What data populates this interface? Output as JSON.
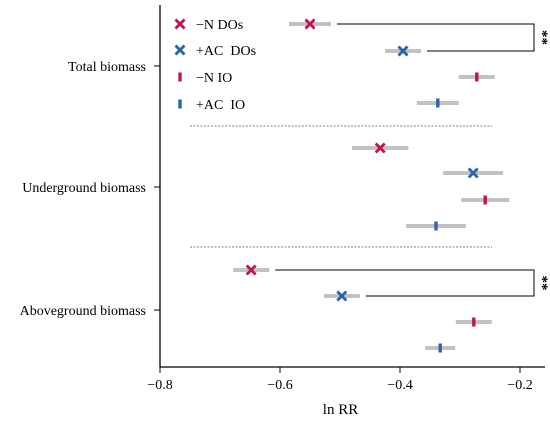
{
  "chart_data": {
    "type": "forest",
    "xlabel": "ln RR",
    "xlim": [
      -0.8,
      -0.2
    ],
    "xticks": [
      -0.8,
      -0.6,
      -0.4,
      -0.2
    ],
    "xtick_labels": [
      "−0.8",
      "−0.6",
      "−0.4",
      "−0.2"
    ],
    "legend_position": "top-left",
    "series": [
      {
        "name": "−N DOs",
        "marker": "x",
        "color": "#c0134f"
      },
      {
        "name": "+AC  DOs",
        "marker": "x",
        "color": "#2b64a8"
      },
      {
        "name": "−N IO",
        "marker": "bar",
        "color": "#c0134f"
      },
      {
        "name": "+AC  IO",
        "marker": "bar",
        "color": "#2b64a8"
      }
    ],
    "ci_color": "#c2c2c2",
    "groups": [
      {
        "label": "Total biomass",
        "points": [
          {
            "mean": -0.55,
            "low": -0.585,
            "high": -0.515
          },
          {
            "mean": -0.395,
            "low": -0.425,
            "high": -0.365
          },
          {
            "mean": -0.272,
            "low": -0.302,
            "high": -0.242
          },
          {
            "mean": -0.337,
            "low": -0.372,
            "high": -0.302
          }
        ],
        "brackets": [
          {
            "from": 0,
            "to": 1,
            "label": "**"
          }
        ]
      },
      {
        "label": "Underground biomass",
        "points": [
          {
            "mean": -0.433,
            "low": -0.48,
            "high": -0.386
          },
          {
            "mean": -0.278,
            "low": -0.328,
            "high": -0.228
          },
          {
            "mean": -0.258,
            "low": -0.298,
            "high": -0.218
          },
          {
            "mean": -0.34,
            "low": -0.39,
            "high": -0.29
          }
        ],
        "brackets": []
      },
      {
        "label": "Aboveground biomass",
        "points": [
          {
            "mean": -0.648,
            "low": -0.678,
            "high": -0.618
          },
          {
            "mean": -0.497,
            "low": -0.527,
            "high": -0.467
          },
          {
            "mean": -0.277,
            "low": -0.307,
            "high": -0.247
          },
          {
            "mean": -0.333,
            "low": -0.358,
            "high": -0.308
          }
        ],
        "brackets": [
          {
            "from": 0,
            "to": 1,
            "label": "**"
          }
        ]
      }
    ]
  }
}
